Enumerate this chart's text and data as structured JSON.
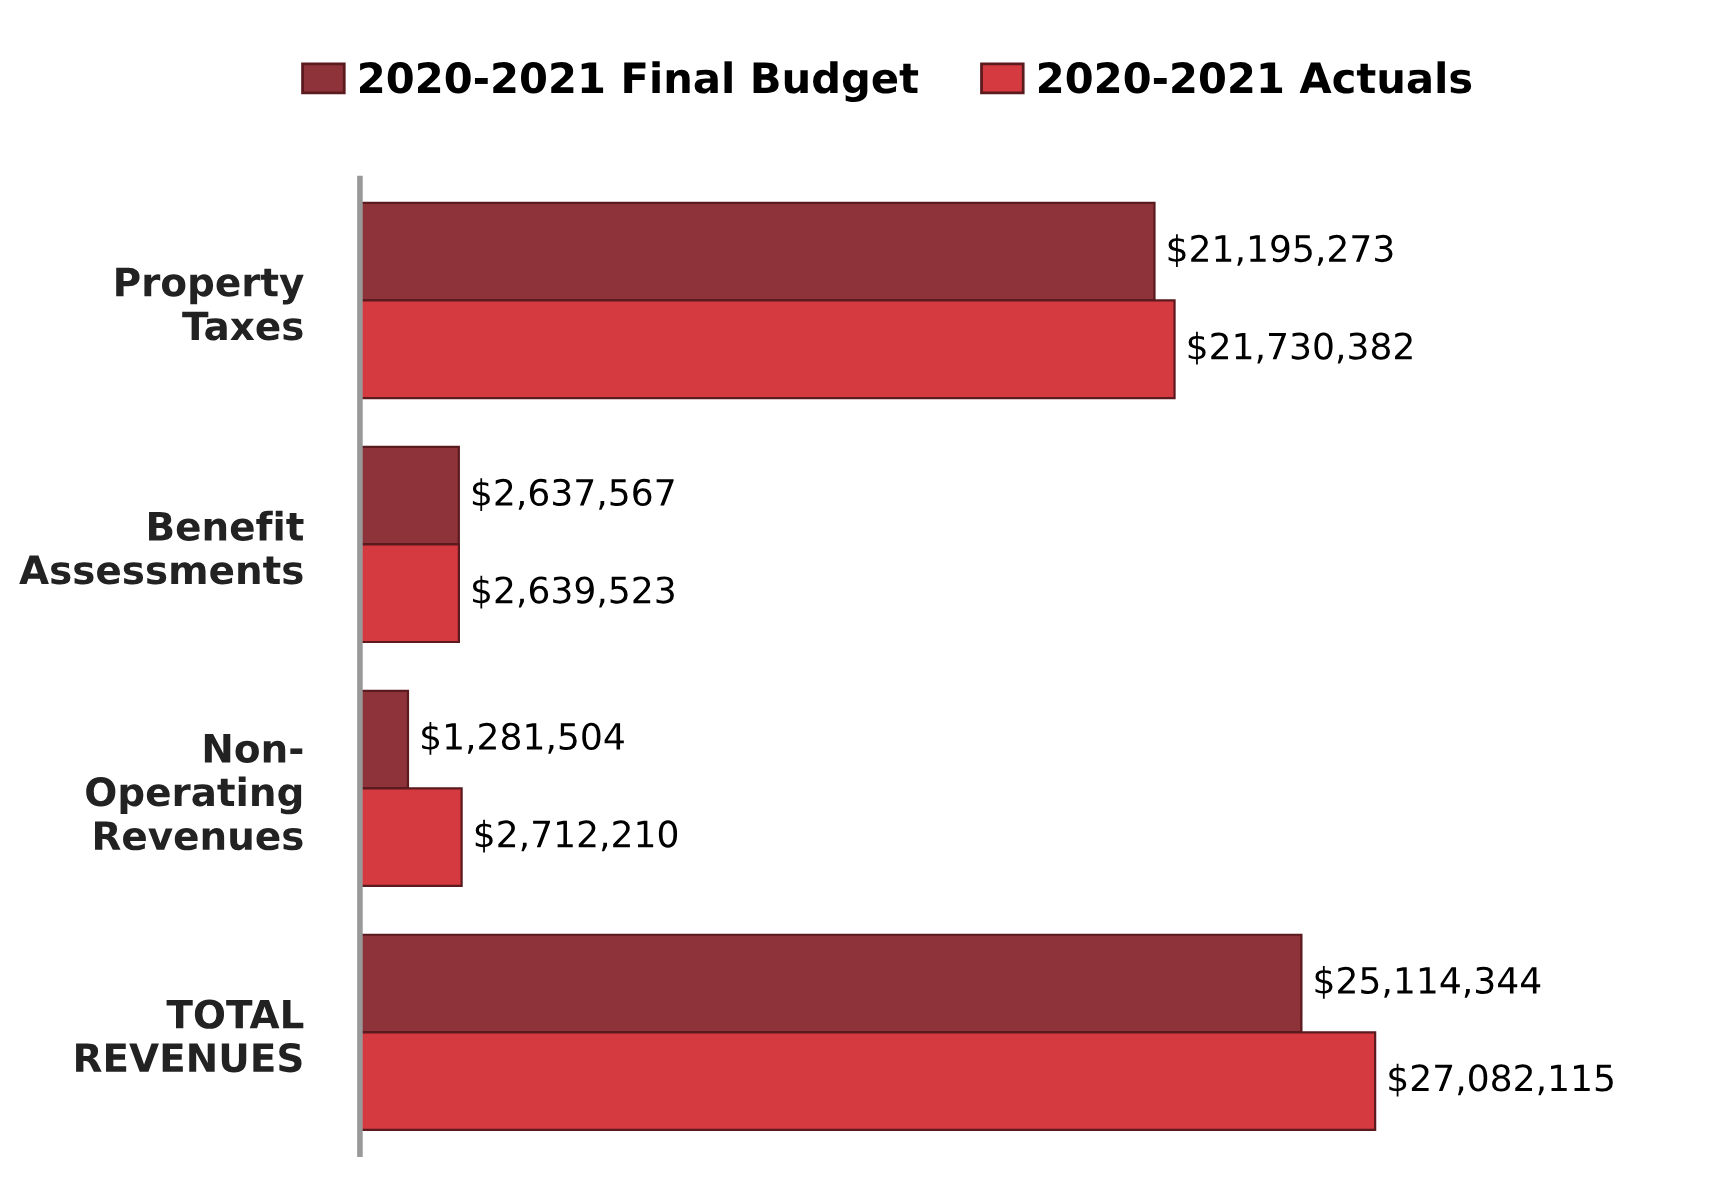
{
  "chart_data": {
    "type": "bar",
    "orientation": "horizontal",
    "categories": [
      "Property\nTaxes",
      "Benefit\nAssessments",
      "Non-\nOperating\nRevenues",
      "TOTAL\nREVENUES"
    ],
    "series": [
      {
        "name": "2020-2021 Final Budget",
        "color": "#8e3339",
        "values": [
          21195273,
          2637567,
          1281504,
          25114344
        ],
        "value_labels": [
          "$21,195,273",
          "$2,637,567",
          "$1,281,504",
          "$25,114,344"
        ]
      },
      {
        "name": "2020-2021 Actuals",
        "color": "#d63a41",
        "values": [
          21730382,
          2639523,
          2712210,
          27082115
        ],
        "value_labels": [
          "$21,730,382",
          "$2,639,523",
          "$2,712,210",
          "$27,082,115"
        ]
      }
    ],
    "legend": "top",
    "grid": false
  }
}
